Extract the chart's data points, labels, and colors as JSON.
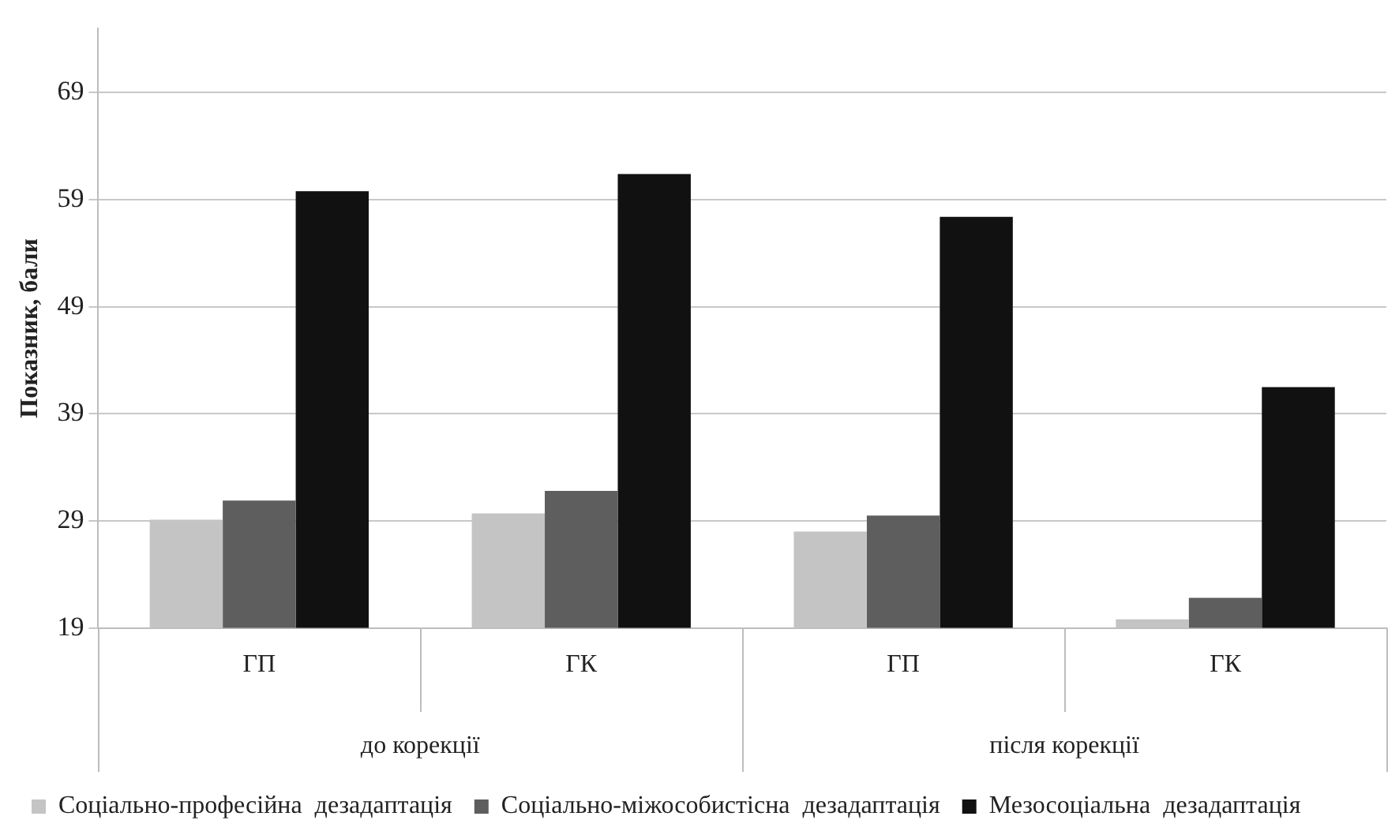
{
  "chart_data": {
    "type": "bar",
    "ylabel": "Показник, бали",
    "categories": [
      "ГП",
      "ГК",
      "ГП",
      "ГК"
    ],
    "annotations": [
      "до корекції",
      "після корекції"
    ],
    "series": [
      {
        "name": "Соціально-професійна  дезадаптація",
        "color": "#c4c4c4",
        "values": [
          29.1,
          29.7,
          28.0,
          19.8
        ]
      },
      {
        "name": "Соціально-міжособистісна  дезадаптація",
        "color": "#5e5e5e",
        "values": [
          30.9,
          31.8,
          29.5,
          21.8
        ]
      },
      {
        "name": "Мезосоціальна  дезадаптація",
        "color": "#111111",
        "values": [
          59.8,
          61.4,
          57.4,
          41.5
        ]
      }
    ],
    "ylim": [
      19,
      75
    ],
    "yticks": [
      19,
      29,
      39,
      49,
      59,
      69
    ],
    "grid": "y",
    "legend": "bottom"
  }
}
